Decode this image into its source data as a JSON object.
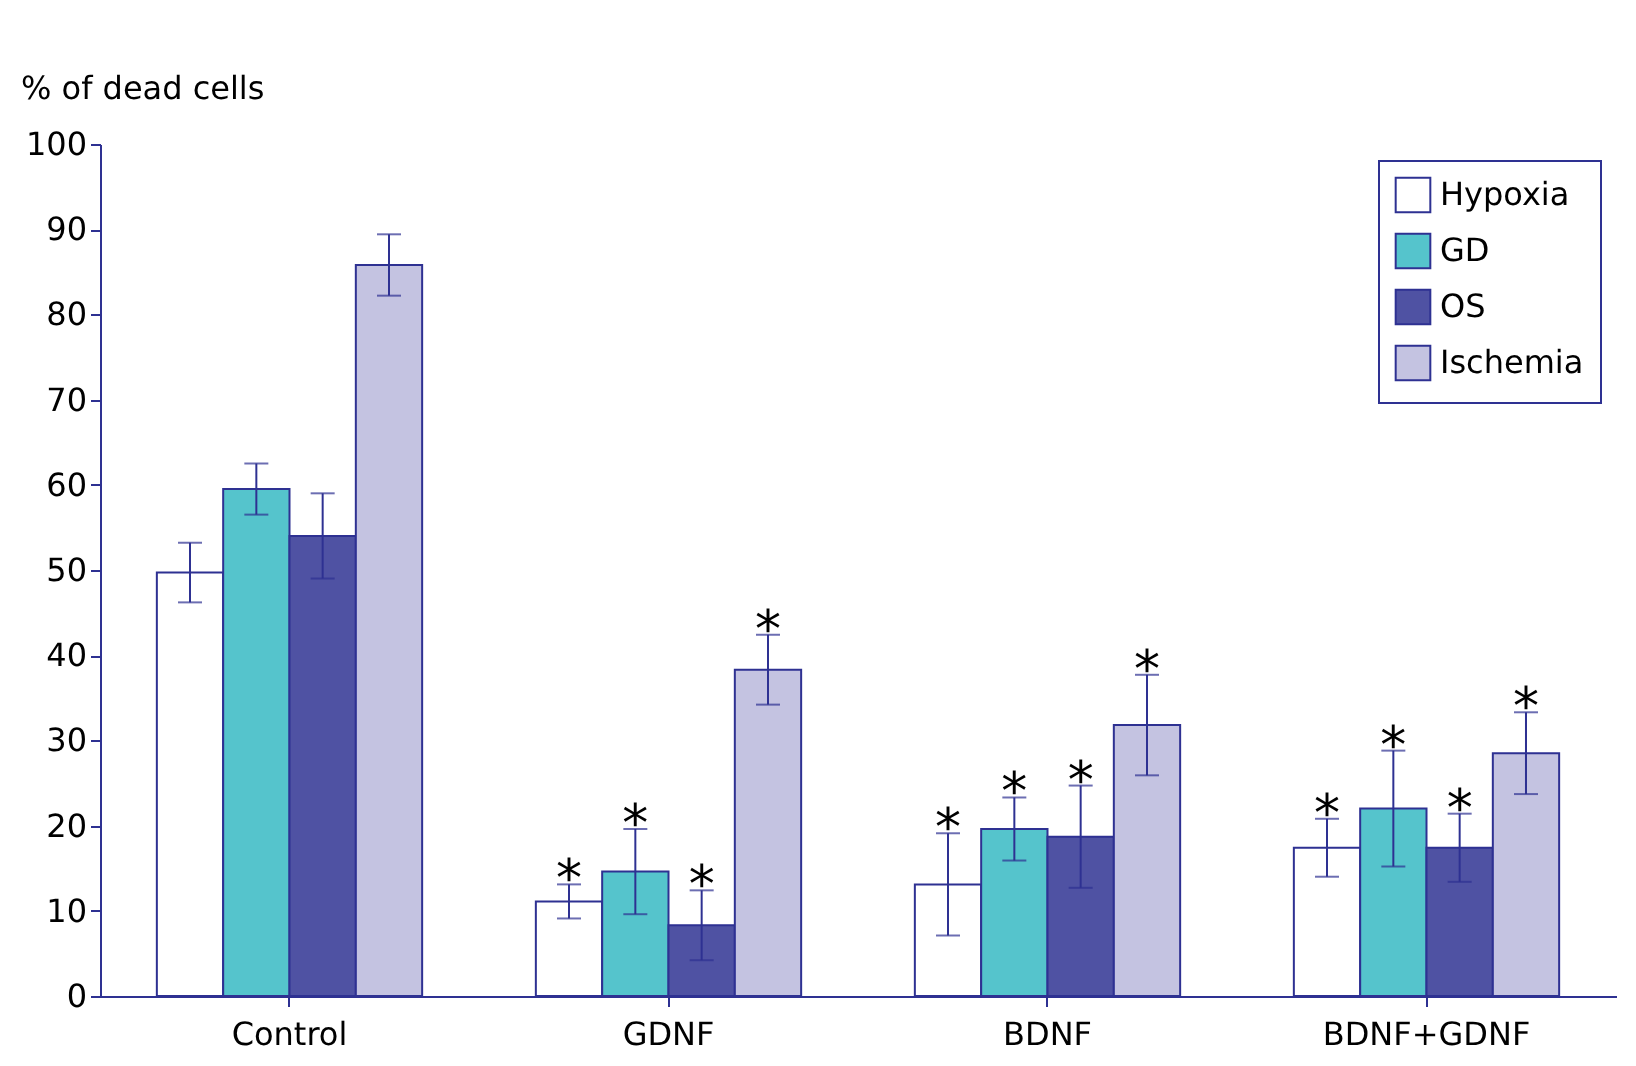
{
  "chart_data": {
    "type": "bar",
    "ylabel": "% of dead cells",
    "categories": [
      "Control",
      "GDNF",
      "BDNF",
      "BDNF+GDNF"
    ],
    "series": [
      {
        "name": "Hypoxia",
        "color": "#ffffff",
        "values": [
          49.7,
          11.1,
          13.1,
          17.4
        ],
        "errors": [
          3.5,
          2,
          6,
          3.4
        ],
        "value_labels": [
          null,
          "*",
          "*",
          "*"
        ]
      },
      {
        "name": "GD",
        "color": "#55c4cc",
        "values": [
          59.5,
          14.6,
          19.6,
          22
        ],
        "errors": [
          3,
          5,
          3.7,
          6.8
        ],
        "value_labels": [
          null,
          "*",
          "*",
          "*"
        ]
      },
      {
        "name": "OS",
        "color": "#4f52a3",
        "values": [
          54,
          8.3,
          18.7,
          17.4
        ],
        "errors": [
          5,
          4.1,
          6,
          4
        ],
        "value_labels": [
          null,
          "*",
          "*",
          "*"
        ]
      },
      {
        "name": "Ischemia",
        "color": "#c4c3e1",
        "values": [
          85.8,
          38.3,
          31.8,
          28.5
        ],
        "errors": [
          3.6,
          4.1,
          5.9,
          4.8
        ],
        "value_labels": [
          null,
          "*",
          "*",
          "*"
        ]
      }
    ],
    "ylim": [
      0,
      100
    ],
    "yticks": [
      0,
      10,
      20,
      30,
      40,
      50,
      60,
      70,
      80,
      90,
      100
    ],
    "grid": false,
    "legend": "top right"
  }
}
